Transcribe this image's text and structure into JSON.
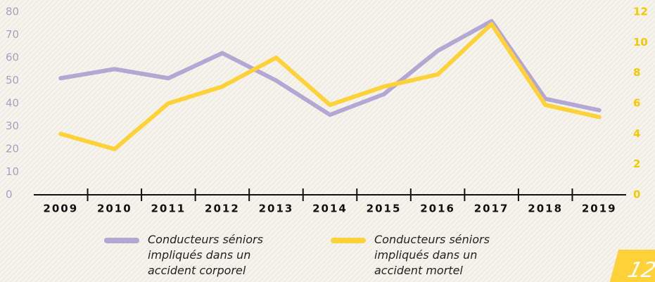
{
  "chart_data": {
    "type": "line",
    "categories": [
      "2009",
      "2010",
      "2011",
      "2012",
      "2013",
      "2014",
      "2015",
      "2016",
      "2017",
      "2018",
      "2019"
    ],
    "series": [
      {
        "name": "Conducteurs séniors impliqués dans un accident corporel",
        "color": "#b3a7d4",
        "values": [
          51,
          55,
          51,
          62,
          50,
          35,
          44,
          63,
          76,
          42,
          37
        ]
      },
      {
        "name": "Conducteurs séniors impliqués dans un accident mortel",
        "color": "#ffd23a",
        "axis": "y2",
        "values": [
          4.0,
          3.0,
          6.0,
          7.1,
          9.0,
          5.9,
          7.1,
          7.9,
          11.2,
          5.9,
          5.1
        ]
      }
    ],
    "ylim": [
      0,
      80
    ],
    "yticks": [
      0,
      10,
      20,
      30,
      40,
      50,
      60,
      70,
      80
    ],
    "y2lim": [
      0,
      12
    ],
    "y2ticks": [
      0,
      2,
      4,
      6,
      8,
      10,
      12
    ]
  },
  "page_number": "12"
}
